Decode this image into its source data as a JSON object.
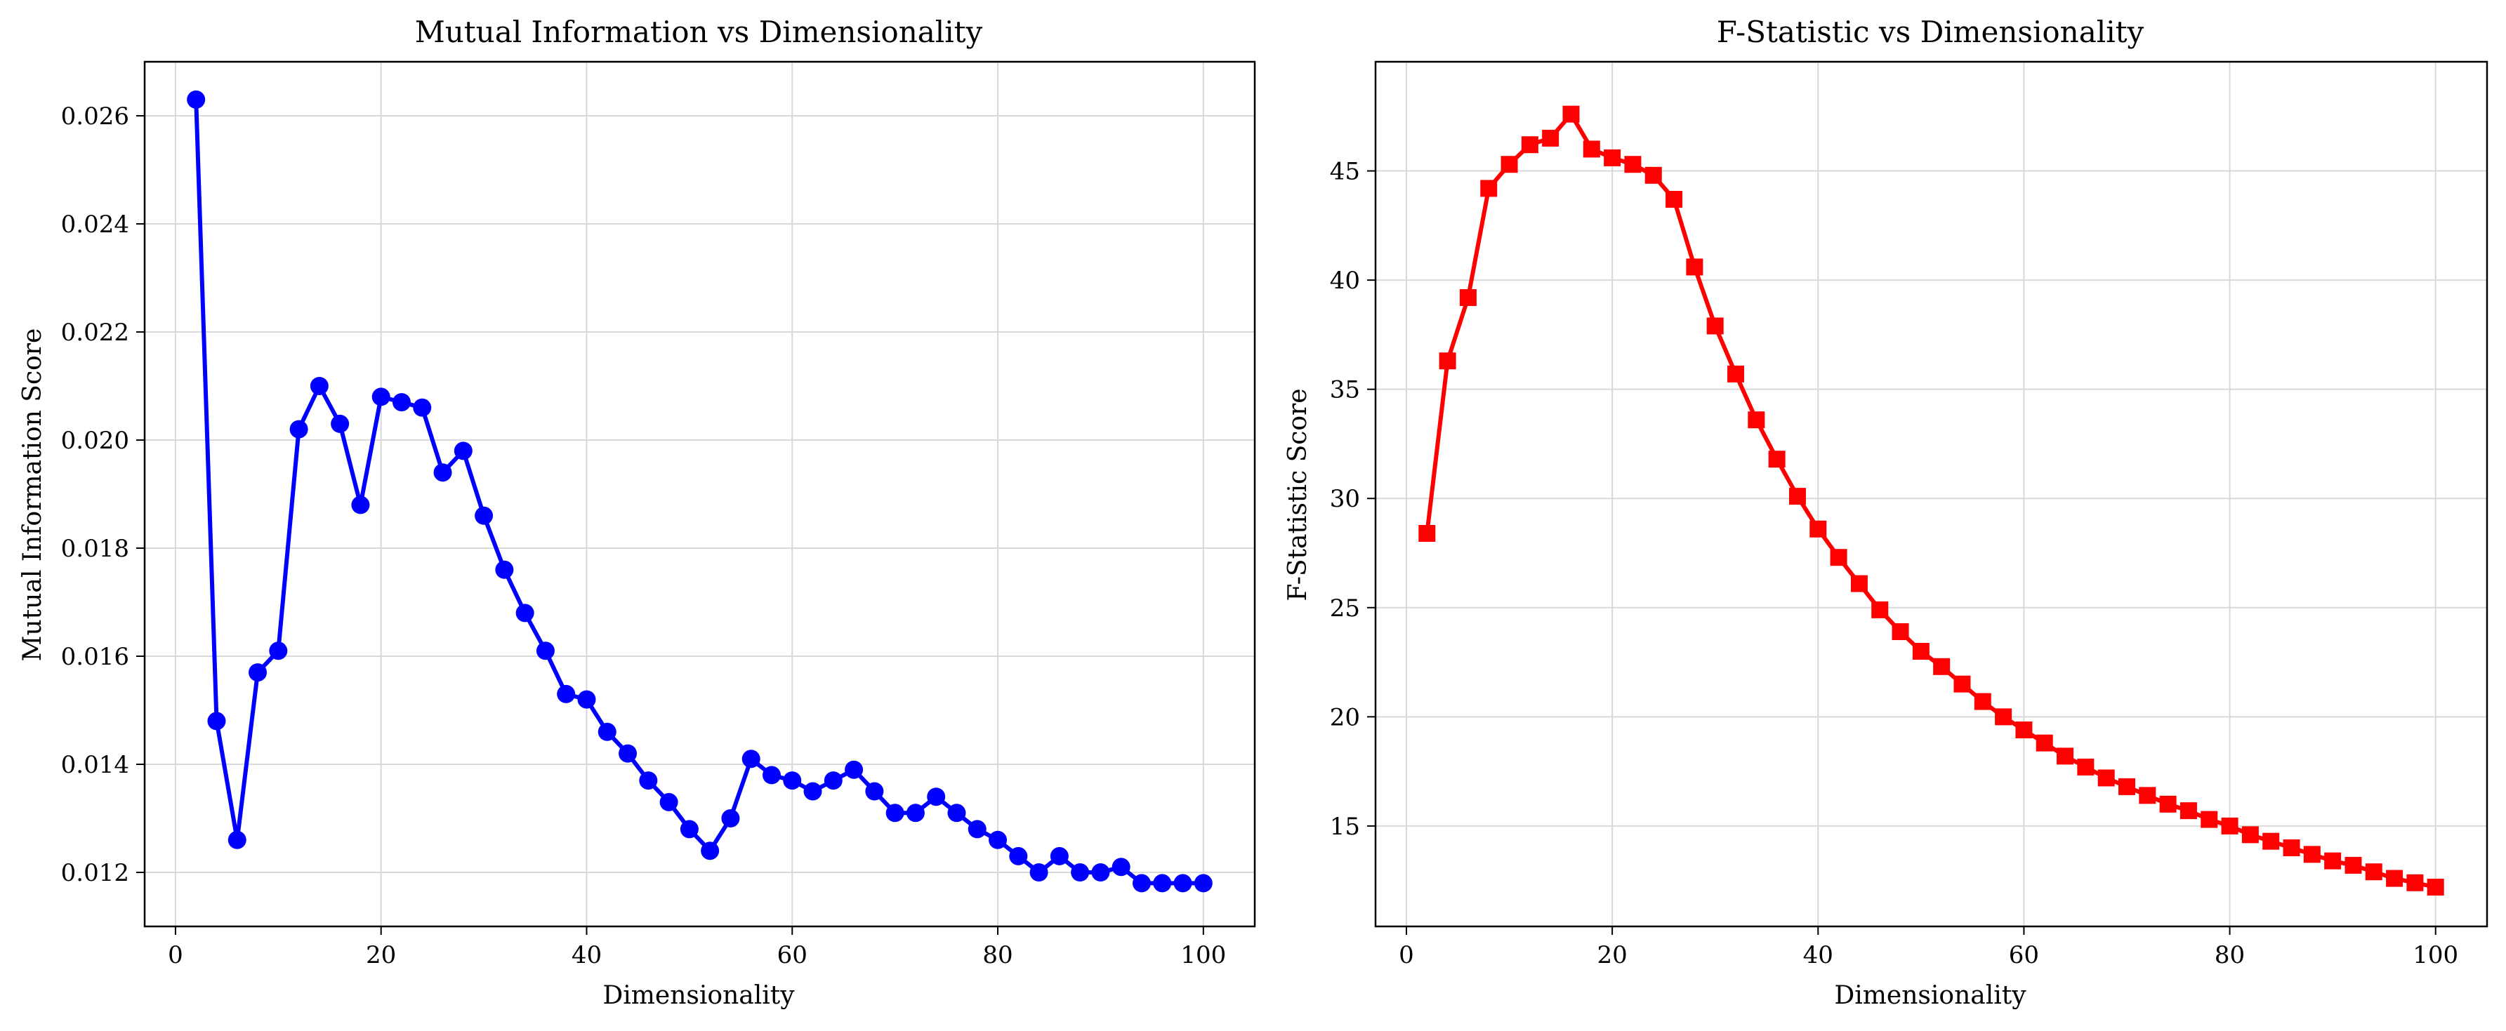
{
  "chart_data": [
    {
      "type": "line",
      "title": "Mutual Information vs Dimensionality",
      "xlabel": "Dimensionality",
      "ylabel": "Mutual Information Score",
      "xlim": [
        -3,
        105
      ],
      "ylim": [
        0.011,
        0.027
      ],
      "xticks": [
        0,
        20,
        40,
        60,
        80,
        100
      ],
      "yticks": [
        0.012,
        0.014,
        0.016,
        0.018,
        0.02,
        0.022,
        0.024,
        0.026
      ],
      "ytick_decimals": 3,
      "grid": true,
      "marker": "circle",
      "color": "#0000ff",
      "series": [
        {
          "x": [
            2,
            4,
            6,
            8,
            10,
            12,
            14,
            16,
            18,
            20,
            22,
            24,
            26,
            28,
            30,
            32,
            34,
            36,
            38,
            40,
            42,
            44,
            46,
            48,
            50,
            52,
            54,
            56,
            58,
            60,
            62,
            64,
            66,
            68,
            70,
            72,
            74,
            76,
            78,
            80,
            82,
            84,
            86,
            88,
            90,
            92,
            94,
            96,
            98,
            100
          ],
          "values": [
            0.0263,
            0.0148,
            0.0126,
            0.0157,
            0.0161,
            0.0202,
            0.021,
            0.0203,
            0.0188,
            0.0208,
            0.0207,
            0.0206,
            0.0194,
            0.0198,
            0.0186,
            0.0176,
            0.0168,
            0.0161,
            0.0153,
            0.0152,
            0.0146,
            0.0142,
            0.0137,
            0.0133,
            0.0128,
            0.0124,
            0.013,
            0.0141,
            0.0138,
            0.0137,
            0.0135,
            0.0137,
            0.0139,
            0.0135,
            0.0131,
            0.0131,
            0.0134,
            0.0131,
            0.0128,
            0.0126,
            0.0123,
            0.012,
            0.0123,
            0.012,
            0.012,
            0.0121,
            0.0118,
            0.0118,
            0.0118,
            0.0118
          ]
        }
      ]
    },
    {
      "type": "line",
      "title": "F-Statistic vs Dimensionality",
      "xlabel": "Dimensionality",
      "ylabel": "F-Statistic Score",
      "xlim": [
        -3,
        105
      ],
      "ylim": [
        10.4,
        50.0
      ],
      "xticks": [
        0,
        20,
        40,
        60,
        80,
        100
      ],
      "yticks": [
        15,
        20,
        25,
        30,
        35,
        40,
        45
      ],
      "ytick_decimals": 0,
      "grid": true,
      "marker": "square",
      "color": "#ff0000",
      "series": [
        {
          "x": [
            2,
            4,
            6,
            8,
            10,
            12,
            14,
            16,
            18,
            20,
            22,
            24,
            26,
            28,
            30,
            32,
            34,
            36,
            38,
            40,
            42,
            44,
            46,
            48,
            50,
            52,
            54,
            56,
            58,
            60,
            62,
            64,
            66,
            68,
            70,
            72,
            74,
            76,
            78,
            80,
            82,
            84,
            86,
            88,
            90,
            92,
            94,
            96,
            98,
            100
          ],
          "values": [
            28.4,
            36.3,
            39.2,
            44.2,
            45.3,
            46.2,
            46.5,
            47.6,
            46.0,
            45.6,
            45.3,
            44.8,
            43.7,
            40.6,
            37.9,
            35.7,
            33.6,
            31.8,
            30.1,
            28.6,
            27.3,
            26.1,
            24.9,
            23.9,
            23.0,
            22.3,
            21.5,
            20.7,
            20.0,
            19.4,
            18.8,
            18.2,
            17.7,
            17.2,
            16.8,
            16.4,
            16.0,
            15.7,
            15.3,
            15.0,
            14.6,
            14.3,
            14.0,
            13.7,
            13.4,
            13.2,
            12.9,
            12.6,
            12.4,
            12.2
          ]
        }
      ]
    }
  ]
}
